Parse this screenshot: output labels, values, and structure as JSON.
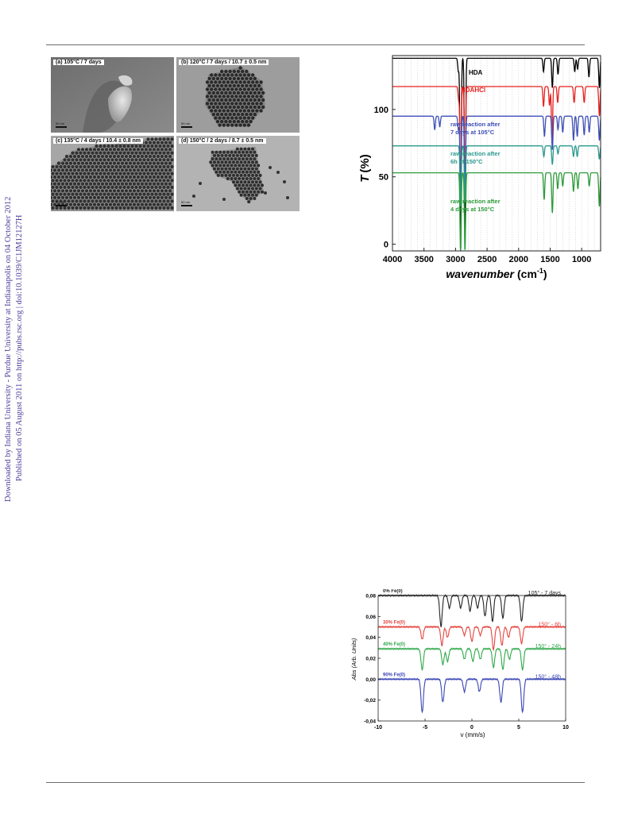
{
  "sidebar": {
    "line1": "Downloaded by Indiana University - Purdue University at Indianapolis on 04 October 2012",
    "line2": "Published on 05 August 2011 on http://pubs.rsc.org | doi:10.1039/C1JM12127H"
  },
  "tem_figure": {
    "panels": [
      {
        "label": "(a) 105°C / 7 days",
        "scale": "50 nm"
      },
      {
        "label": "(b) 120°C / 7 days / 10.7 ± 0.5 nm",
        "scale": "50 nm"
      },
      {
        "label": "(c) 135°C / 4 days / 10.4 ± 0.8 nm",
        "scale": "50 nm"
      },
      {
        "label": "(d) 150°C / 2 days / 8.7 ± 0.5 nm",
        "scale": "50 nm"
      }
    ]
  },
  "chart_data": [
    {
      "type": "line",
      "xlabel": "wavenumber",
      "xlabel_unit": "(cm",
      "xlabel_sup": "-1",
      "xlabel_close": ")",
      "ylabel": "T",
      "ylabel_unit": "(%)",
      "xlim": [
        4000,
        700
      ],
      "ylim": [
        -5,
        140
      ],
      "x_ticks": [
        "4000",
        "3500",
        "3000",
        "2500",
        "2000",
        "1500",
        "1000"
      ],
      "y_ticks": [
        "0",
        "50",
        "100"
      ],
      "series": [
        {
          "name": "HDA",
          "color": "#000000",
          "baseline": 138,
          "peaks": [
            [
              2955,
              10
            ],
            [
              2920,
              135
            ],
            [
              2850,
              130
            ],
            [
              1605,
              10
            ],
            [
              1465,
              22
            ],
            [
              1375,
              12
            ],
            [
              1110,
              10
            ],
            [
              1065,
              8
            ],
            [
              885,
              14
            ],
            [
              720,
              22
            ]
          ]
        },
        {
          "name": "HDAHCl",
          "color": "#e8211f",
          "baseline": 117,
          "peaks": [
            [
              2950,
              10
            ],
            [
              2920,
              75
            ],
            [
              2850,
              70
            ],
            [
              1605,
              15
            ],
            [
              1510,
              14
            ],
            [
              1470,
              40
            ],
            [
              1380,
              12
            ],
            [
              1120,
              12
            ],
            [
              960,
              12
            ],
            [
              720,
              22
            ]
          ]
        },
        {
          "name": "raw reaction after 7 days at 105°C",
          "color": "#3d4fb8",
          "baseline": 95,
          "peaks": [
            [
              3330,
              10
            ],
            [
              3250,
              8
            ],
            [
              2955,
              10
            ],
            [
              2920,
              60
            ],
            [
              2850,
              55
            ],
            [
              1590,
              15
            ],
            [
              1465,
              25
            ],
            [
              1375,
              10
            ],
            [
              1300,
              12
            ],
            [
              1130,
              18
            ],
            [
              1070,
              15
            ],
            [
              960,
              14
            ],
            [
              880,
              12
            ],
            [
              720,
              18
            ]
          ]
        },
        {
          "name": "raw reaction after 6h at 150°C",
          "color": "#2a9a8e",
          "baseline": 73,
          "peaks": [
            [
              2920,
              45
            ],
            [
              2850,
              42
            ],
            [
              1600,
              8
            ],
            [
              1465,
              14
            ],
            [
              1375,
              6
            ],
            [
              1130,
              8
            ],
            [
              1070,
              8
            ],
            [
              720,
              10
            ]
          ]
        },
        {
          "name": "raw reaction after 4 days at 150°C",
          "color": "#2d9b3a",
          "baseline": 53,
          "peaks": [
            [
              2920,
              60
            ],
            [
              2850,
              58
            ],
            [
              1595,
              20
            ],
            [
              1465,
              30
            ],
            [
              1380,
              12
            ],
            [
              1300,
              10
            ],
            [
              1130,
              14
            ],
            [
              1060,
              12
            ],
            [
              880,
              10
            ],
            [
              720,
              25
            ]
          ]
        }
      ]
    },
    {
      "type": "line",
      "xlabel": "v (mm/s)",
      "ylabel": "Abs (Arb. Units)",
      "xlim": [
        -10,
        10
      ],
      "ylim": [
        -0.04,
        0.08
      ],
      "x_ticks": [
        "-10",
        "-5",
        "0",
        "5",
        "10"
      ],
      "y_ticks": [
        "0,08",
        "0,06",
        "0,04",
        "0,02",
        "0,00",
        "-0,02",
        "-0,04"
      ],
      "series": [
        {
          "name": "0% Fe(0)",
          "time_label": "105° - 7 days",
          "color": "#222222",
          "baseline": 0.08,
          "dips": [
            [
              -3.3,
              0.03
            ],
            [
              -2.4,
              0.012
            ],
            [
              -1.2,
              0.012
            ],
            [
              -0.2,
              0.015
            ],
            [
              0.6,
              0.012
            ],
            [
              1.4,
              0.02
            ],
            [
              2.2,
              0.025
            ],
            [
              3.3,
              0.022
            ],
            [
              5.3,
              0.025
            ]
          ]
        },
        {
          "name": "30% Fe(0)",
          "time_label": "150° - 6h",
          "color": "#e5453f",
          "baseline": 0.05,
          "dips": [
            [
              -5.3,
              0.012
            ],
            [
              -3.2,
              0.018
            ],
            [
              -2.6,
              0.01
            ],
            [
              -0.8,
              0.008
            ],
            [
              0.0,
              0.014
            ],
            [
              0.9,
              0.008
            ],
            [
              2.3,
              0.022
            ],
            [
              3.2,
              0.018
            ],
            [
              3.9,
              0.01
            ],
            [
              5.3,
              0.016
            ]
          ]
        },
        {
          "name": "40% Fe(0)",
          "time_label": "150° - 24h",
          "color": "#2fa84a",
          "baseline": 0.029,
          "dips": [
            [
              -5.3,
              0.02
            ],
            [
              -3.1,
              0.015
            ],
            [
              -2.6,
              0.012
            ],
            [
              -0.8,
              0.01
            ],
            [
              0.1,
              0.012
            ],
            [
              0.9,
              0.01
            ],
            [
              2.3,
              0.018
            ],
            [
              3.3,
              0.02
            ],
            [
              4.0,
              0.01
            ],
            [
              5.4,
              0.02
            ]
          ]
        },
        {
          "name": "90% Fe(0)",
          "time_label": "150° - 48h",
          "color": "#3a45b5",
          "baseline": 0.0,
          "dips": [
            [
              -5.3,
              0.032
            ],
            [
              -3.1,
              0.022
            ],
            [
              -0.8,
              0.012
            ],
            [
              0.8,
              0.012
            ],
            [
              3.1,
              0.022
            ],
            [
              5.4,
              0.032
            ]
          ]
        }
      ]
    }
  ]
}
